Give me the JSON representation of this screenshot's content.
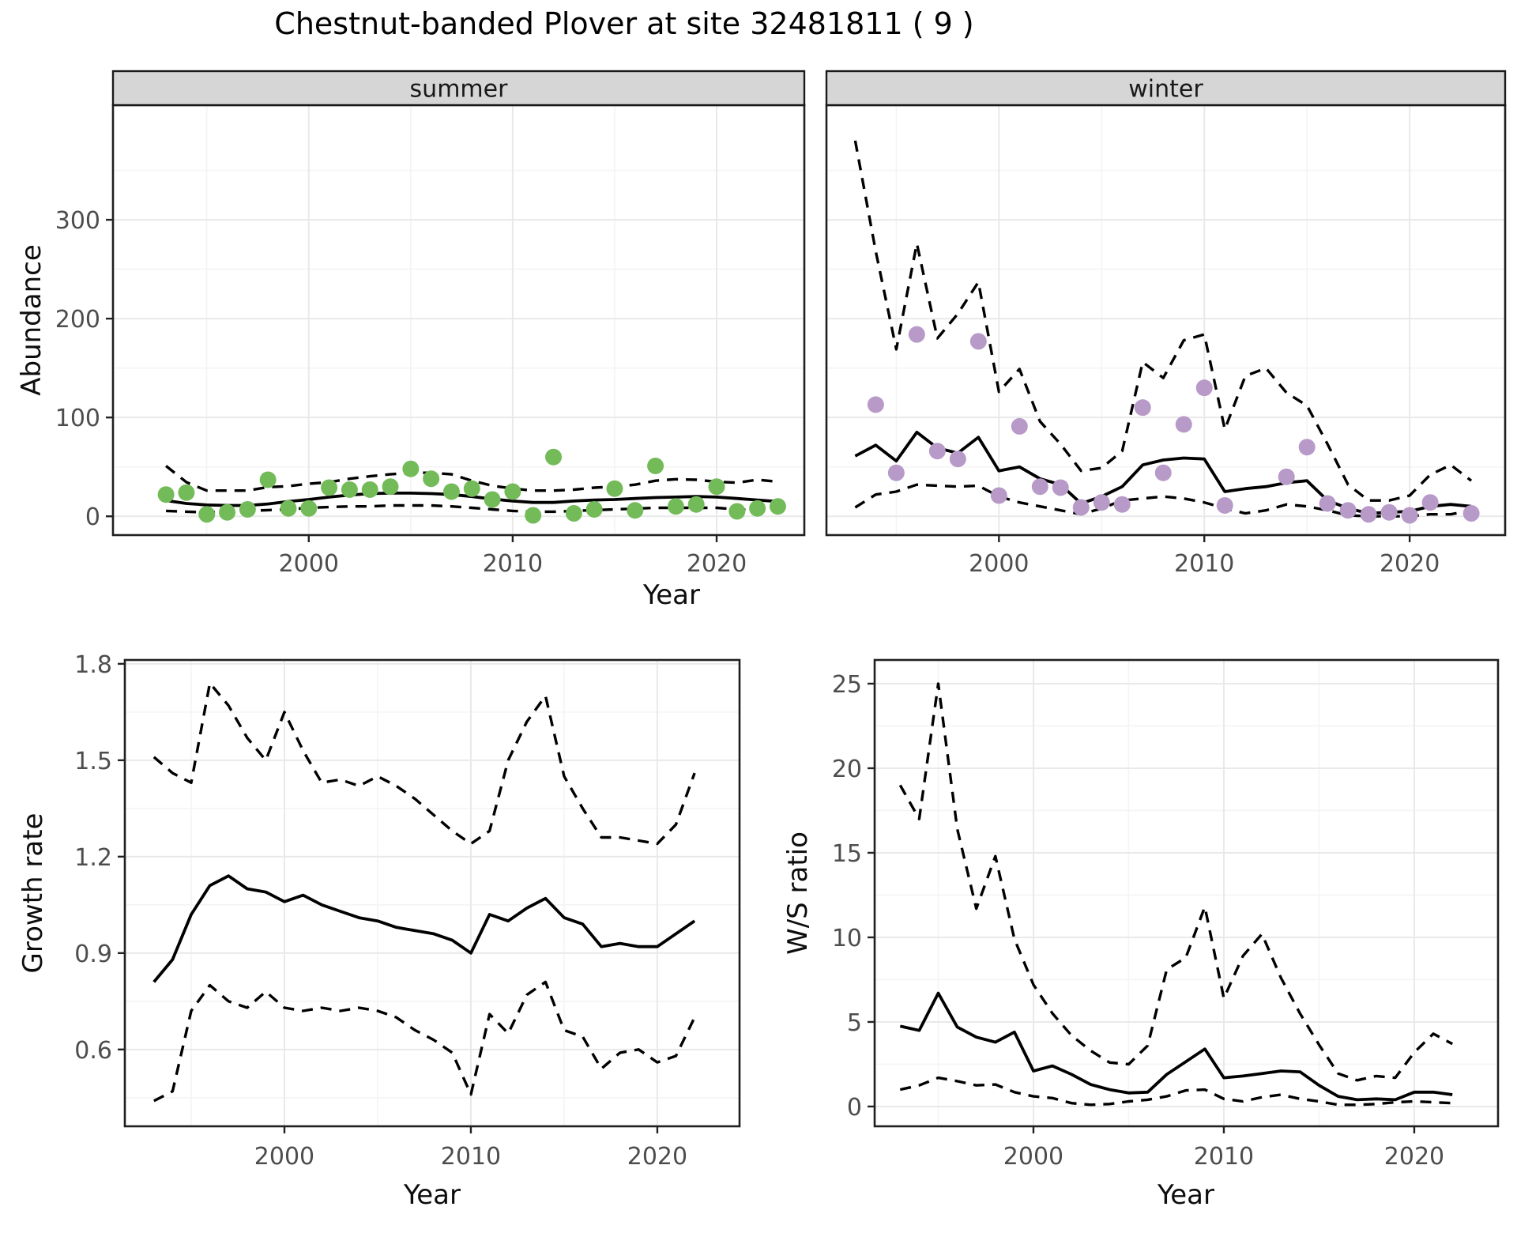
{
  "title": "Chestnut-banded Plover at site 32481811 ( 9 )",
  "axis_titles": {
    "abundance": "Abundance",
    "top_year": "Year",
    "growth_rate": "Growth rate",
    "ws_ratio": "W/S ratio",
    "bottom_left_year": "Year",
    "bottom_right_year": "Year"
  },
  "facets": {
    "summer": "summer",
    "winter": "winter"
  },
  "colors": {
    "summer_point": "#73bb59",
    "winter_point": "#b89ac8",
    "line": "#000000",
    "strip_bg": "#d6d6d6",
    "strip_border": "#1a1a1a",
    "panel_border": "#1f1f1f",
    "grid_major": "#e9e9e9",
    "grid_minor": "#f4f4f4",
    "axis_text": "#4d4d4d",
    "strip_text": "#191919"
  },
  "chart_data": [
    {
      "id": "summer-abundance",
      "type": "scatter",
      "facet_label": "summer",
      "ylabel": "Abundance",
      "xlabel": "Year",
      "xlim": [
        1990.4,
        2024.3
      ],
      "ylim": [
        -19,
        416
      ],
      "x_ticks": [
        2000,
        2010,
        2020
      ],
      "x_tick_labels": [
        "2000",
        "2010",
        "2020"
      ],
      "x_minor": [
        1995,
        2005,
        2015
      ],
      "y_ticks": [
        0,
        100,
        200,
        300
      ],
      "y_tick_labels": [
        "0",
        "100",
        "200",
        "300"
      ],
      "y_minor": [
        50,
        150,
        250,
        350
      ],
      "years": [
        1993,
        1994,
        1995,
        1996,
        1997,
        1998,
        1999,
        2000,
        2001,
        2002,
        2003,
        2004,
        2005,
        2006,
        2007,
        2008,
        2009,
        2010,
        2011,
        2012,
        2013,
        2014,
        2015,
        2016,
        2017,
        2018,
        2019,
        2020,
        2021,
        2022,
        2023
      ],
      "observed_points": [
        [
          1993,
          22
        ],
        [
          1994,
          24
        ],
        [
          1995,
          2
        ],
        [
          1996,
          4
        ],
        [
          1997,
          7
        ],
        [
          1998,
          37
        ],
        [
          1999,
          8
        ],
        [
          2000,
          8
        ],
        [
          2001,
          29
        ],
        [
          2002,
          27
        ],
        [
          2003,
          27
        ],
        [
          2004,
          30
        ],
        [
          2005,
          48
        ],
        [
          2006,
          38
        ],
        [
          2007,
          25
        ],
        [
          2008,
          28
        ],
        [
          2009,
          17
        ],
        [
          2010,
          25
        ],
        [
          2011,
          1
        ],
        [
          2012,
          60
        ],
        [
          2013,
          3
        ],
        [
          2014,
          7
        ],
        [
          2015,
          28
        ],
        [
          2016,
          6
        ],
        [
          2017,
          51
        ],
        [
          2018,
          10
        ],
        [
          2019,
          12
        ],
        [
          2020,
          30
        ],
        [
          2021,
          5
        ],
        [
          2022,
          8
        ],
        [
          2023,
          10
        ]
      ],
      "series": [
        {
          "name": "model-fit",
          "style": "solid",
          "values": [
            16,
            13,
            11.5,
            11,
            11,
            12.5,
            15,
            17,
            19.5,
            21.5,
            23,
            23.5,
            23.5,
            23,
            22,
            20,
            17.5,
            15.5,
            14,
            14,
            15.5,
            16.5,
            17,
            18,
            19,
            19.5,
            20,
            19.5,
            18,
            16.5,
            15
          ]
        },
        {
          "name": "upper-ci",
          "style": "dashed",
          "values": [
            51,
            34.5,
            26,
            26,
            26,
            29.5,
            30.5,
            33,
            34.5,
            38,
            40.5,
            42.5,
            44,
            44,
            42.5,
            36,
            31,
            28,
            26,
            26,
            27,
            29,
            30,
            32,
            36,
            37.5,
            37,
            35,
            34,
            37,
            35
          ]
        },
        {
          "name": "lower-ci",
          "style": "dashed",
          "values": [
            5.5,
            4.7,
            4,
            4.7,
            5.5,
            6.3,
            7,
            8.6,
            9.4,
            10,
            10,
            11,
            11,
            11,
            10,
            8.6,
            7,
            5.5,
            4.7,
            4.7,
            5.5,
            6.3,
            7,
            7.8,
            8.6,
            8.6,
            8.6,
            8.6,
            7,
            6,
            6
          ]
        }
      ]
    },
    {
      "id": "winter-abundance",
      "type": "scatter",
      "facet_label": "winter",
      "ylabel": "Abundance",
      "xlabel": "Year",
      "xlim": [
        1991.6,
        2024.65
      ],
      "ylim": [
        -19,
        416
      ],
      "x_ticks": [
        2000,
        2010,
        2020
      ],
      "x_tick_labels": [
        "2000",
        "2010",
        "2020"
      ],
      "x_minor": [
        1995,
        2005,
        2015
      ],
      "y_ticks": [
        0,
        100,
        200,
        300
      ],
      "y_tick_labels": [
        "0",
        "100",
        "200",
        "300"
      ],
      "y_minor": [
        50,
        150,
        250,
        350
      ],
      "years": [
        1993,
        1994,
        1995,
        1996,
        1997,
        1998,
        1999,
        2000,
        2001,
        2002,
        2003,
        2004,
        2005,
        2006,
        2007,
        2008,
        2009,
        2010,
        2011,
        2012,
        2013,
        2014,
        2015,
        2016,
        2017,
        2018,
        2019,
        2020,
        2021,
        2022,
        2023
      ],
      "observed_points": [
        [
          1994,
          113
        ],
        [
          1995,
          44
        ],
        [
          1996,
          184
        ],
        [
          1997,
          66
        ],
        [
          1998,
          58
        ],
        [
          1999,
          177
        ],
        [
          2000,
          21
        ],
        [
          2001,
          91
        ],
        [
          2002,
          30
        ],
        [
          2003,
          29
        ],
        [
          2004,
          9
        ],
        [
          2005,
          14
        ],
        [
          2006,
          12
        ],
        [
          2007,
          110
        ],
        [
          2008,
          44
        ],
        [
          2009,
          93
        ],
        [
          2010,
          130
        ],
        [
          2011,
          11
        ],
        [
          2014,
          40
        ],
        [
          2015,
          70
        ],
        [
          2016,
          13
        ],
        [
          2017,
          6
        ],
        [
          2018,
          2
        ],
        [
          2019,
          4
        ],
        [
          2020,
          1
        ],
        [
          2021,
          14
        ],
        [
          2023,
          3
        ]
      ],
      "series": [
        {
          "name": "model-fit",
          "style": "solid",
          "values": [
            61,
            72,
            56,
            85,
            69,
            64,
            80,
            46,
            50,
            38,
            32,
            13,
            20,
            30,
            52,
            57,
            59,
            58,
            25,
            28,
            30,
            34,
            36,
            16,
            8,
            3,
            4,
            5,
            10,
            12,
            10
          ]
        },
        {
          "name": "upper-ci",
          "style": "dashed",
          "values": [
            380,
            268,
            169,
            276,
            180,
            205,
            237,
            126,
            149,
            96,
            73,
            46,
            49,
            66,
            156,
            140,
            178,
            184,
            88,
            142,
            150,
            125,
            112,
            73,
            32,
            16,
            16,
            21,
            42,
            52,
            36
          ]
        },
        {
          "name": "lower-ci",
          "style": "dashed",
          "values": [
            9,
            22,
            25,
            32,
            31,
            30,
            31,
            20,
            14,
            10,
            6,
            2,
            8,
            16,
            18,
            20,
            18,
            14,
            8,
            3,
            6,
            12,
            10,
            6,
            1,
            0,
            0,
            0,
            2,
            2,
            6
          ]
        }
      ]
    },
    {
      "id": "growth-rate",
      "type": "line",
      "facet_label": null,
      "ylabel": "Growth rate",
      "xlabel": "Year",
      "xlim": [
        1991.44,
        2024.41
      ],
      "ylim": [
        0.361,
        1.812
      ],
      "x_ticks": [
        2000,
        2010,
        2020
      ],
      "x_tick_labels": [
        "2000",
        "2010",
        "2020"
      ],
      "x_minor": [
        1995,
        2005,
        2015
      ],
      "y_ticks": [
        0.6,
        0.9,
        1.2,
        1.5,
        1.8
      ],
      "y_tick_labels": [
        "0.6",
        "0.9",
        "1.2",
        "1.5",
        "1.8"
      ],
      "y_minor": [
        0.45,
        0.75,
        1.05,
        1.35,
        1.65
      ],
      "years": [
        1993,
        1994,
        1995,
        1996,
        1997,
        1998,
        1999,
        2000,
        2001,
        2002,
        2003,
        2004,
        2005,
        2006,
        2007,
        2008,
        2009,
        2010,
        2011,
        2012,
        2013,
        2014,
        2015,
        2016,
        2017,
        2018,
        2019,
        2020,
        2021,
        2022
      ],
      "observed_points": [],
      "series": [
        {
          "name": "model-fit",
          "style": "solid",
          "values": [
            0.81,
            0.88,
            1.02,
            1.11,
            1.14,
            1.1,
            1.09,
            1.06,
            1.08,
            1.05,
            1.03,
            1.01,
            1.0,
            0.98,
            0.97,
            0.96,
            0.94,
            0.9,
            1.02,
            1.0,
            1.04,
            1.07,
            1.01,
            0.99,
            0.92,
            0.93,
            0.92,
            0.92,
            0.96,
            1.0
          ]
        },
        {
          "name": "upper-ci",
          "style": "dashed",
          "values": [
            1.51,
            1.46,
            1.43,
            1.74,
            1.67,
            1.57,
            1.5,
            1.65,
            1.53,
            1.43,
            1.44,
            1.42,
            1.45,
            1.42,
            1.38,
            1.33,
            1.28,
            1.24,
            1.28,
            1.5,
            1.62,
            1.7,
            1.45,
            1.35,
            1.26,
            1.26,
            1.25,
            1.24,
            1.3,
            1.46
          ]
        },
        {
          "name": "lower-ci",
          "style": "dashed",
          "values": [
            0.44,
            0.47,
            0.72,
            0.8,
            0.75,
            0.73,
            0.78,
            0.73,
            0.72,
            0.73,
            0.72,
            0.73,
            0.72,
            0.7,
            0.66,
            0.63,
            0.59,
            0.46,
            0.71,
            0.65,
            0.77,
            0.81,
            0.66,
            0.64,
            0.54,
            0.59,
            0.6,
            0.56,
            0.58,
            0.7
          ]
        }
      ]
    },
    {
      "id": "ws-ratio",
      "type": "line",
      "facet_label": null,
      "ylabel": "W/S ratio",
      "xlabel": "Year",
      "xlim": [
        1991.66,
        2024.4
      ],
      "ylim": [
        -1.17,
        26.4
      ],
      "x_ticks": [
        2000,
        2010,
        2020
      ],
      "x_tick_labels": [
        "2000",
        "2010",
        "2020"
      ],
      "x_minor": [
        1995,
        2005,
        2015
      ],
      "y_ticks": [
        0,
        5,
        10,
        15,
        20,
        25
      ],
      "y_tick_labels": [
        "0",
        "5",
        "10",
        "15",
        "20",
        "25"
      ],
      "y_minor": [
        2.5,
        7.5,
        12.5,
        17.5,
        22.5
      ],
      "years": [
        1993,
        1994,
        1995,
        1996,
        1997,
        1998,
        1999,
        2000,
        2001,
        2002,
        2003,
        2004,
        2005,
        2006,
        2007,
        2008,
        2009,
        2010,
        2011,
        2012,
        2013,
        2014,
        2015,
        2016,
        2017,
        2018,
        2019,
        2020,
        2021,
        2022
      ],
      "observed_points": [],
      "series": [
        {
          "name": "model-fit",
          "style": "solid",
          "values": [
            4.75,
            4.5,
            6.7,
            4.7,
            4.1,
            3.8,
            4.4,
            2.1,
            2.4,
            1.9,
            1.3,
            1.0,
            0.8,
            0.85,
            1.9,
            2.65,
            3.4,
            1.7,
            1.8,
            1.95,
            2.1,
            2.05,
            1.25,
            0.6,
            0.4,
            0.45,
            0.4,
            0.85,
            0.85,
            0.7
          ]
        },
        {
          "name": "upper-ci",
          "style": "dashed",
          "values": [
            19,
            17,
            25,
            16.4,
            11.7,
            14.8,
            9.9,
            7.2,
            5.5,
            4.2,
            3.3,
            2.6,
            2.5,
            3.6,
            8.1,
            8.8,
            11.8,
            6.4,
            8.9,
            10.2,
            7.6,
            5.5,
            3.65,
            1.95,
            1.55,
            1.8,
            1.7,
            3.2,
            4.3,
            3.7
          ]
        },
        {
          "name": "lower-ci",
          "style": "dashed",
          "values": [
            1.0,
            1.25,
            1.7,
            1.5,
            1.25,
            1.3,
            0.85,
            0.6,
            0.5,
            0.2,
            0.1,
            0.15,
            0.3,
            0.4,
            0.6,
            0.95,
            1.0,
            0.45,
            0.3,
            0.55,
            0.7,
            0.45,
            0.3,
            0.1,
            0.1,
            0.15,
            0.25,
            0.3,
            0.25,
            0.2
          ]
        }
      ]
    }
  ]
}
